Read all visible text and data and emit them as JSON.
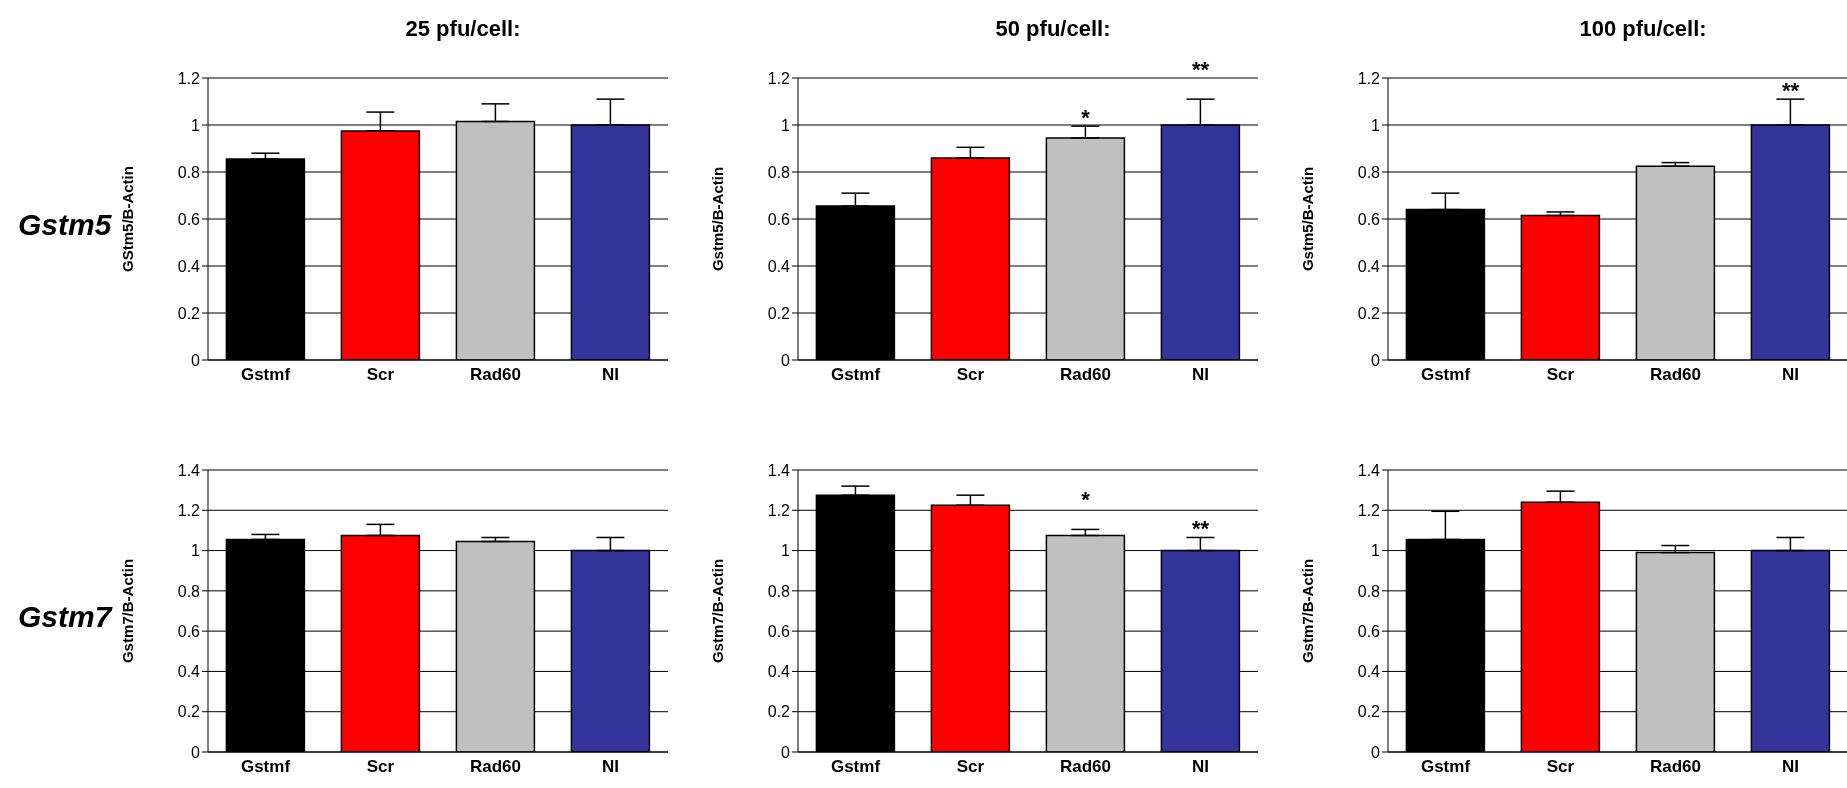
{
  "chart_data": [
    {
      "type": "bar",
      "title": "25 pfu/cell:",
      "ylabel": "GStm5/B-Actin",
      "categories": [
        "Gstmf",
        "Scr",
        "Rad60",
        "NI"
      ],
      "values": [
        0.855,
        0.975,
        1.015,
        1.0
      ],
      "colors": [
        "#000000",
        "#ff0000",
        "#c0c0c0",
        "#333399"
      ],
      "errors": [
        [
          0.855,
          0.88
        ],
        [
          0.975,
          1.055
        ],
        [
          1.015,
          1.09
        ],
        [
          1.0,
          1.11
        ]
      ],
      "ylim": [
        0,
        1.2
      ],
      "yticks": [
        0,
        0.2,
        0.4,
        0.6,
        0.8,
        1,
        1.2
      ],
      "grid": "y",
      "annotations": [
        "Gstm5"
      ]
    },
    {
      "type": "bar",
      "title": "50 pfu/cell:",
      "ylabel": "Gstm5/B-Actin",
      "categories": [
        "Gstmf",
        "Scr",
        "Rad60",
        "NI"
      ],
      "values": [
        0.655,
        0.86,
        0.945,
        1.0
      ],
      "colors": [
        "#000000",
        "#ff0000",
        "#c0c0c0",
        "#333399"
      ],
      "errors": [
        [
          0.655,
          0.71
        ],
        [
          0.86,
          0.905
        ],
        [
          0.945,
          0.995
        ],
        [
          1.0,
          1.11
        ]
      ],
      "ylim": [
        0,
        1.2
      ],
      "yticks": [
        0,
        0.2,
        0.4,
        0.6,
        0.8,
        1,
        1.2
      ],
      "grid": "y",
      "annotations": [
        {
          "text": "*",
          "x": "Rad60",
          "y": 0.995
        },
        {
          "text": "**",
          "x": "NI",
          "y": 1.11
        }
      ]
    },
    {
      "type": "bar",
      "title": "100 pfu/cell:",
      "ylabel": "Gstm5/B-Actin",
      "categories": [
        "Gstmf",
        "Scr",
        "Rad60",
        "NI"
      ],
      "values": [
        0.64,
        0.615,
        0.825,
        1.0
      ],
      "colors": [
        "#000000",
        "#ff0000",
        "#c0c0c0",
        "#333399"
      ],
      "errors": [
        [
          0.64,
          0.71
        ],
        [
          0.615,
          0.63
        ],
        [
          0.825,
          0.84
        ],
        [
          1.0,
          1.11
        ]
      ],
      "ylim": [
        0,
        1.2
      ],
      "yticks": [
        0,
        0.2,
        0.4,
        0.6,
        0.8,
        1,
        1.2
      ],
      "grid": "y",
      "annotations": [
        {
          "text": "**",
          "x": "NI",
          "y": 1.11
        }
      ]
    },
    {
      "type": "bar",
      "ylabel": "Gstm7/B-Actin",
      "categories": [
        "Gstmf",
        "Scr",
        "Rad60",
        "NI"
      ],
      "values": [
        1.055,
        1.075,
        1.045,
        1.0
      ],
      "colors": [
        "#000000",
        "#ff0000",
        "#c0c0c0",
        "#333399"
      ],
      "errors": [
        [
          1.055,
          1.08
        ],
        [
          1.075,
          1.13
        ],
        [
          1.045,
          1.065
        ],
        [
          1.0,
          1.065
        ]
      ],
      "ylim": [
        0,
        1.4
      ],
      "yticks": [
        0,
        0.2,
        0.4,
        0.6,
        0.8,
        1,
        1.2,
        1.4
      ],
      "grid": "y",
      "annotations": [
        "Gstm7"
      ]
    },
    {
      "type": "bar",
      "ylabel": "Gstm7/B-Actin",
      "categories": [
        "Gstmf",
        "Scr",
        "Rad60",
        "NI"
      ],
      "values": [
        1.275,
        1.225,
        1.075,
        1.0
      ],
      "colors": [
        "#000000",
        "#ff0000",
        "#c0c0c0",
        "#333399"
      ],
      "errors": [
        [
          1.275,
          1.32
        ],
        [
          1.225,
          1.275
        ],
        [
          1.075,
          1.105
        ],
        [
          1.0,
          1.065
        ]
      ],
      "ylim": [
        0,
        1.4
      ],
      "yticks": [
        0,
        0.2,
        0.4,
        0.6,
        0.8,
        1,
        1.2,
        1.4
      ],
      "grid": "y",
      "annotations": [
        {
          "text": "*",
          "x": "Rad60",
          "y": 1.105
        },
        {
          "text": "**",
          "x": "NI",
          "y": 1.065
        }
      ]
    },
    {
      "type": "bar",
      "ylabel": "Gstm7/B-Actin",
      "categories": [
        "Gstmf",
        "Scr",
        "Rad60",
        "NI"
      ],
      "values": [
        1.055,
        1.24,
        0.99,
        1.0
      ],
      "colors": [
        "#000000",
        "#ff0000",
        "#c0c0c0",
        "#333399"
      ],
      "errors": [
        [
          1.055,
          1.195
        ],
        [
          1.24,
          1.295
        ],
        [
          0.99,
          1.025
        ],
        [
          1.0,
          1.065
        ]
      ],
      "ylim": [
        0,
        1.4
      ],
      "yticks": [
        0,
        0.2,
        0.4,
        0.6,
        0.8,
        1,
        1.2,
        1.4
      ],
      "grid": "y"
    }
  ]
}
